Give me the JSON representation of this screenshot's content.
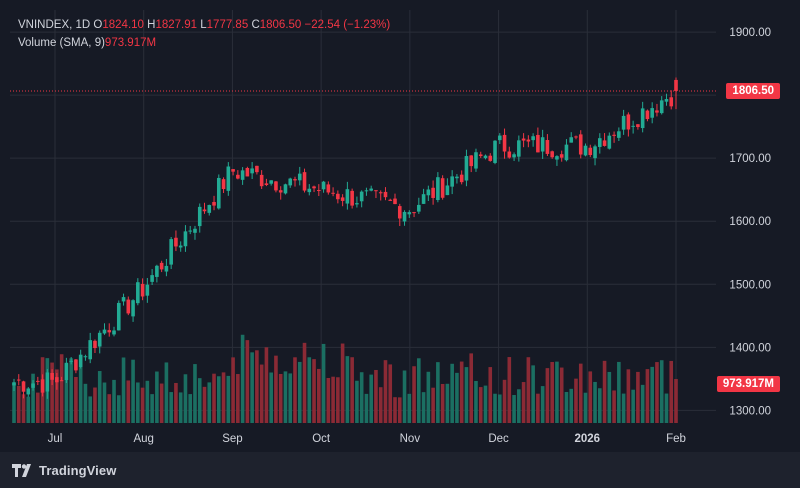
{
  "legend": {
    "symbol": "VNINDEX, 1D",
    "open_key": "O",
    "open": "1824.10",
    "high_key": "H",
    "high": "1827.91",
    "low_key": "L",
    "low": "1777.85",
    "close_key": "C",
    "close": "1806.50",
    "change": "−22.54 (−1.23%)",
    "volume_label": "Volume (SMA, 9)",
    "volume_value": "973.917M"
  },
  "badges": {
    "last_price": "1806.50",
    "last_volume": "973.917M"
  },
  "branding": {
    "name": "TradingView"
  },
  "colors": {
    "up": "#22ab94",
    "down": "#f23645",
    "up_vol": "#1b6f62",
    "down_vol": "#8b2a35"
  },
  "chart_data": {
    "type": "candlestick",
    "y_ticks": [
      "1300.00",
      "1400.00",
      "1500.00",
      "1600.00",
      "1700.00",
      "1800.00",
      "1900.00"
    ],
    "ylim": [
      1280,
      1935
    ],
    "x_labels": [
      "Jul",
      "Aug",
      "Sep",
      "Oct",
      "Nov",
      "Dec",
      "2026",
      "Feb"
    ],
    "grid": true,
    "last_price_line": 1806.5,
    "monthly_closes": [
      {
        "label": "Jul",
        "close": 1345
      },
      {
        "label": "Aug",
        "close": 1495
      },
      {
        "label": "Sep",
        "close": 1680
      },
      {
        "label": "Oct",
        "close": 1650
      },
      {
        "label": "Nov",
        "close": 1620
      },
      {
        "label": "Dec",
        "close": 1720
      },
      {
        "label": "2026",
        "close": 1720
      },
      {
        "label": "Feb",
        "close": 1806.5
      }
    ],
    "last_candle": {
      "open": 1824.1,
      "high": 1827.91,
      "low": 1777.85,
      "close": 1806.5,
      "volume_sma": "973.917M"
    }
  }
}
